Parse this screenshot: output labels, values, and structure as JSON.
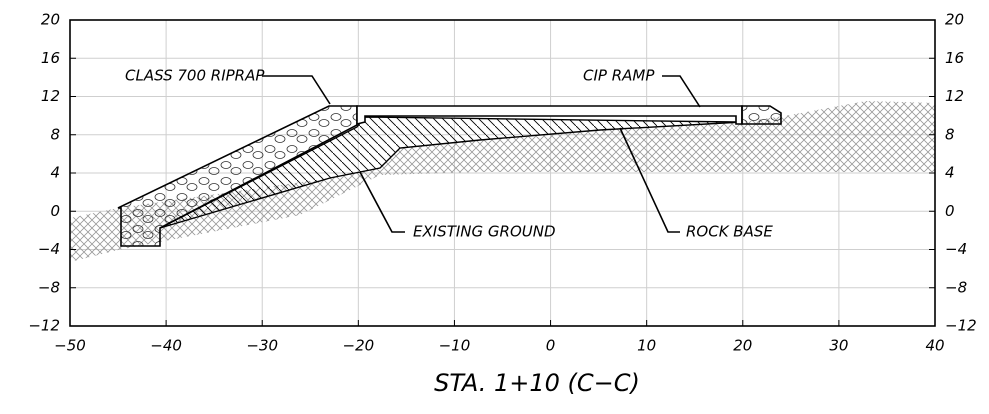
{
  "title": "STA. 1+10 (C−C)",
  "x_axis": {
    "ticks": [
      "−50",
      "−40",
      "−30",
      "−20",
      "−10",
      "0",
      "10",
      "20",
      "30",
      "40"
    ]
  },
  "y_axis": {
    "left_ticks": [
      "20",
      "16",
      "12",
      "8",
      "4",
      "0",
      "−4",
      "−8",
      "−12"
    ],
    "right_ticks": [
      "20",
      "16",
      "12",
      "8",
      "4",
      "0",
      "−4",
      "−8",
      "−12"
    ]
  },
  "labels": {
    "riprap": "CLASS 700 RIPRAP",
    "ramp": "CIP RAMP",
    "ground": "EXISTING GROUND",
    "base": "ROCK BASE"
  }
}
